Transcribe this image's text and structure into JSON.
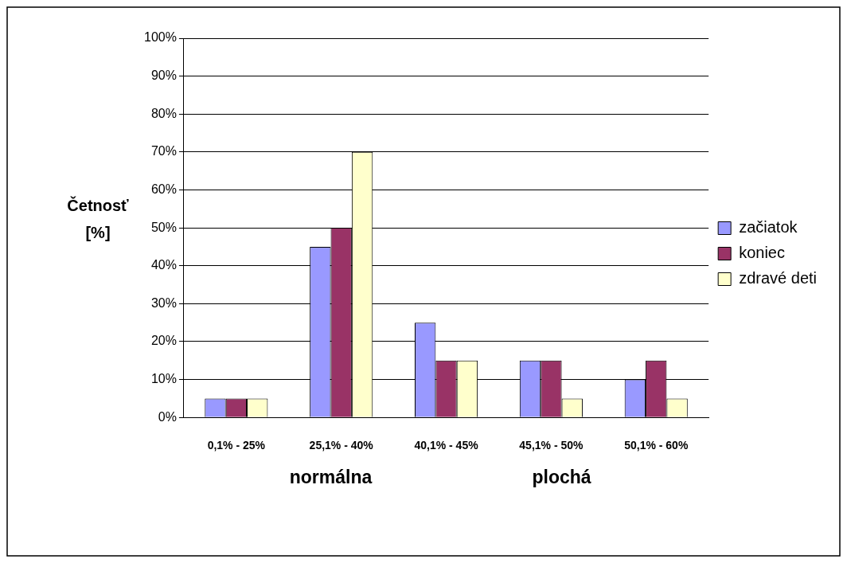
{
  "chart_data": {
    "type": "bar",
    "ylabel": "Četnosť [%]",
    "categories": [
      "0,1% - 25%",
      "25,1% - 40%",
      "40,1% - 45%",
      "45,1% - 50%",
      "50,1% - 60%"
    ],
    "series": [
      {
        "name": "začiatok",
        "color": "#9999ff",
        "values": [
          5,
          45,
          25,
          15,
          10
        ]
      },
      {
        "name": "koniec",
        "color": "#993366",
        "values": [
          5,
          50,
          15,
          15,
          15
        ]
      },
      {
        "name": "zdravé deti",
        "color": "#ffffcc",
        "values": [
          5,
          70,
          15,
          5,
          5
        ]
      }
    ],
    "ylim": [
      0,
      100
    ],
    "yticks": [
      {
        "value": 0,
        "label": "0%"
      },
      {
        "value": 10,
        "label": "10%"
      },
      {
        "value": 20,
        "label": "20%"
      },
      {
        "value": 30,
        "label": "30%"
      },
      {
        "value": 40,
        "label": "40%"
      },
      {
        "value": 50,
        "label": "50%"
      },
      {
        "value": 60,
        "label": "60%"
      },
      {
        "value": 70,
        "label": "70%"
      },
      {
        "value": 80,
        "label": "80%"
      },
      {
        "value": 90,
        "label": "90%"
      },
      {
        "value": 100,
        "label": "100%"
      }
    ],
    "grid": "y",
    "legend": "right",
    "annotations": [
      "normálna",
      "plochá"
    ]
  }
}
